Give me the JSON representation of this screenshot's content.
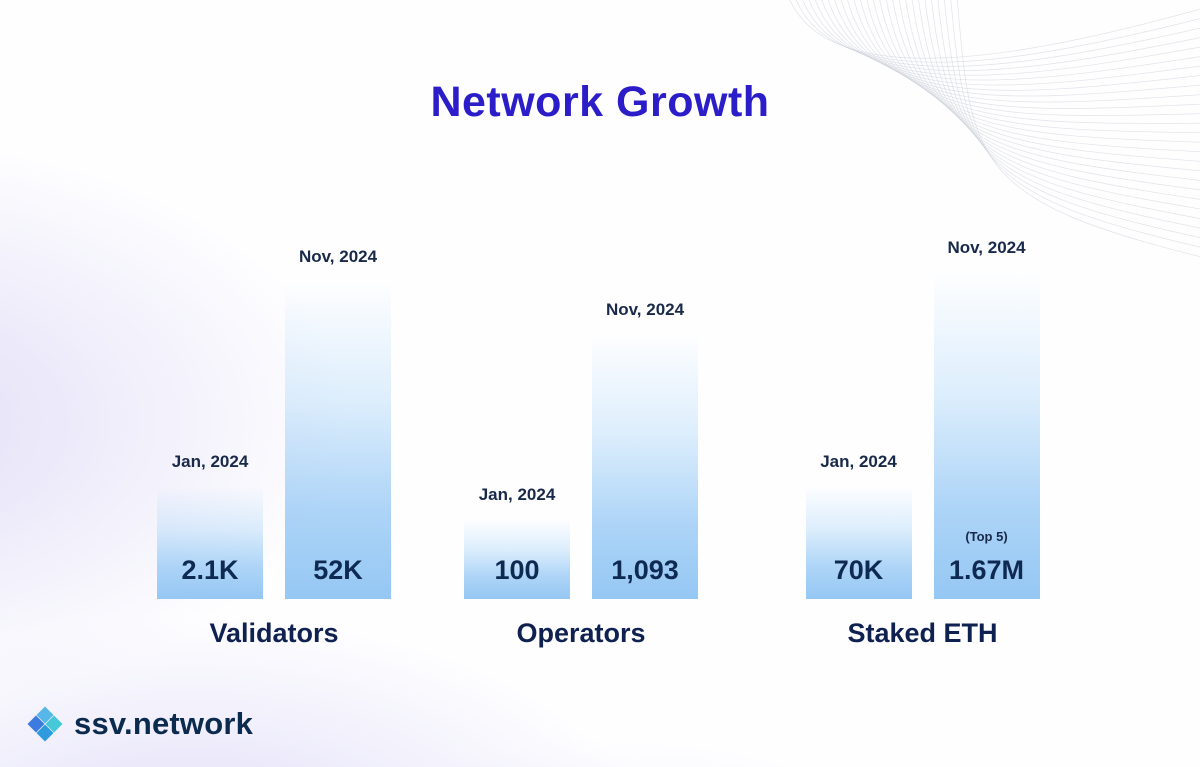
{
  "page": {
    "title": "Network Growth"
  },
  "logo": {
    "text": "ssv.network"
  },
  "chart_data": {
    "type": "bar",
    "title": "Network Growth",
    "categories": [
      "Validators",
      "Operators",
      "Staked ETH"
    ],
    "series": [
      {
        "name": "Jan, 2024",
        "values": [
          2100,
          100,
          70000
        ]
      },
      {
        "name": "Nov, 2024",
        "values": [
          52000,
          1093,
          1670000
        ]
      }
    ],
    "legend_position": "none",
    "axes": "hidden",
    "grid": false,
    "groups": [
      {
        "category": "Validators",
        "bars": [
          {
            "label": "Jan, 2024",
            "value": "2.1K",
            "numeric": 2100
          },
          {
            "label": "Nov, 2024",
            "value": "52K",
            "numeric": 52000
          }
        ]
      },
      {
        "category": "Operators",
        "bars": [
          {
            "label": "Jan, 2024",
            "value": "100",
            "numeric": 100
          },
          {
            "label": "Nov, 2024",
            "value": "1,093",
            "numeric": 1093
          }
        ]
      },
      {
        "category": "Staked ETH",
        "bars": [
          {
            "label": "Jan, 2024",
            "value": "70K",
            "numeric": 70000
          },
          {
            "label": "Nov, 2024",
            "value": "1.67M",
            "numeric": 1670000,
            "note": "(Top 5)"
          }
        ]
      }
    ],
    "colors": {
      "title": "#2B1DC8",
      "bar_gradient_bottom": "#95C7F3",
      "text_dark": "#0F2A52",
      "label_dark": "#18294A"
    }
  }
}
